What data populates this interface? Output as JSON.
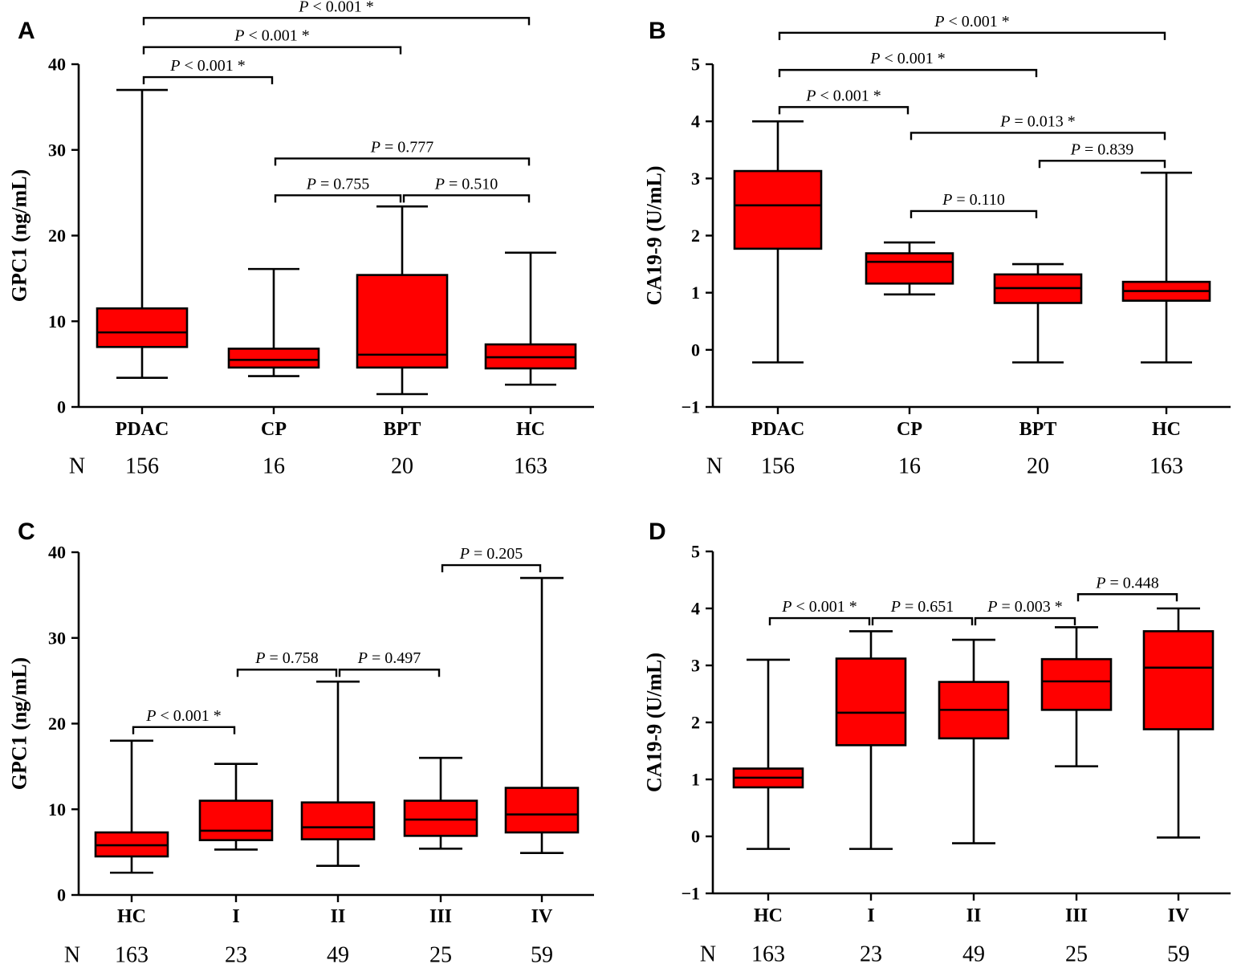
{
  "figure": {
    "box_color": "#ff0000",
    "line_color": "#000000"
  },
  "chart_data": [
    {
      "panel": "A",
      "type": "box",
      "ylabel": "GPC1 (ng/mL)",
      "ylim": [
        0,
        40
      ],
      "yticks": [
        0,
        10,
        20,
        30,
        40
      ],
      "n_label": "N",
      "categories": [
        "PDAC",
        "CP",
        "BPT",
        "HC"
      ],
      "n": [
        "156",
        "16",
        "20",
        "163"
      ],
      "boxes": [
        {
          "min": 3.4,
          "q1": 7.0,
          "median": 8.7,
          "q3": 11.5,
          "max": 37.0
        },
        {
          "min": 3.6,
          "q1": 4.6,
          "median": 5.5,
          "q3": 6.8,
          "max": 16.1
        },
        {
          "min": 1.5,
          "q1": 4.6,
          "median": 6.1,
          "q3": 15.4,
          "max": 23.4
        },
        {
          "min": 2.6,
          "q1": 4.5,
          "median": 5.8,
          "q3": 7.3,
          "max": 18.0
        }
      ],
      "comparisons": [
        {
          "from": 0,
          "to": 3,
          "y": 45.4,
          "label": "P < 0.001 *"
        },
        {
          "from": 0,
          "to": 2,
          "y": 42.0,
          "label": "P < 0.001 *"
        },
        {
          "from": 0,
          "to": 1,
          "y": 38.5,
          "label": "P < 0.001 *"
        },
        {
          "from": 1,
          "to": 3,
          "y": 29.0,
          "label": "P = 0.777"
        },
        {
          "from": 1,
          "to": 2,
          "y": 24.7,
          "label": "P = 0.755"
        },
        {
          "from": 2,
          "to": 3,
          "y": 24.7,
          "label": "P = 0.510"
        }
      ]
    },
    {
      "panel": "B",
      "type": "box",
      "ylabel": "CA19-9 (U/mL)",
      "ylim": [
        -1,
        5
      ],
      "yticks": [
        -1,
        0,
        1,
        2,
        3,
        4,
        5
      ],
      "n_label": "N",
      "categories": [
        "PDAC",
        "CP",
        "BPT",
        "HC"
      ],
      "n": [
        "156",
        "16",
        "20",
        "163"
      ],
      "boxes": [
        {
          "min": -0.22,
          "q1": 1.77,
          "median": 2.53,
          "q3": 3.13,
          "max": 4.0
        },
        {
          "min": 0.97,
          "q1": 1.16,
          "median": 1.54,
          "q3": 1.69,
          "max": 1.88
        },
        {
          "min": -0.22,
          "q1": 0.82,
          "median": 1.08,
          "q3": 1.32,
          "max": 1.5
        },
        {
          "min": -0.22,
          "q1": 0.86,
          "median": 1.03,
          "q3": 1.19,
          "max": 3.1
        }
      ],
      "comparisons": [
        {
          "from": 0,
          "to": 3,
          "y": 5.55,
          "label": "P < 0.001 *"
        },
        {
          "from": 0,
          "to": 2,
          "y": 4.9,
          "label": "P < 0.001 *"
        },
        {
          "from": 0,
          "to": 1,
          "y": 4.25,
          "label": "P < 0.001 *"
        },
        {
          "from": 1,
          "to": 3,
          "y": 3.8,
          "label": "P = 0.013 *"
        },
        {
          "from": 2,
          "to": 3,
          "y": 3.31,
          "label": "P = 0.839"
        },
        {
          "from": 1,
          "to": 2,
          "y": 2.43,
          "label": "P = 0.110"
        }
      ]
    },
    {
      "panel": "C",
      "type": "box",
      "ylabel": "GPC1 (ng/mL)",
      "ylim": [
        0,
        40
      ],
      "yticks": [
        0,
        10,
        20,
        30,
        40
      ],
      "n_label": "N",
      "categories": [
        "HC",
        "I",
        "II",
        "III",
        "IV"
      ],
      "n": [
        "163",
        "23",
        "49",
        "25",
        "59"
      ],
      "boxes": [
        {
          "min": 2.6,
          "q1": 4.5,
          "median": 5.8,
          "q3": 7.3,
          "max": 18.0
        },
        {
          "min": 5.3,
          "q1": 6.4,
          "median": 7.5,
          "q3": 11.0,
          "max": 15.3
        },
        {
          "min": 3.4,
          "q1": 6.5,
          "median": 7.9,
          "q3": 10.8,
          "max": 24.9
        },
        {
          "min": 5.4,
          "q1": 6.9,
          "median": 8.8,
          "q3": 11.0,
          "max": 16.0
        },
        {
          "min": 4.9,
          "q1": 7.3,
          "median": 9.4,
          "q3": 12.5,
          "max": 37.0
        }
      ],
      "comparisons": [
        {
          "from": 0,
          "to": 1,
          "y": 19.6,
          "label": "P < 0.001 *"
        },
        {
          "from": 1,
          "to": 2,
          "y": 26.3,
          "label": "P = 0.758"
        },
        {
          "from": 2,
          "to": 3,
          "y": 26.3,
          "label": "P = 0.497"
        },
        {
          "from": 3,
          "to": 4,
          "y": 38.5,
          "label": "P = 0.205"
        }
      ]
    },
    {
      "panel": "D",
      "type": "box",
      "ylabel": "CA19-9 (U/mL)",
      "ylim": [
        -1,
        5
      ],
      "yticks": [
        -1,
        0,
        1,
        2,
        3,
        4,
        5
      ],
      "n_label": "N",
      "categories": [
        "HC",
        "I",
        "II",
        "III",
        "IV"
      ],
      "n": [
        "163",
        "23",
        "49",
        "25",
        "59"
      ],
      "boxes": [
        {
          "min": -0.22,
          "q1": 0.86,
          "median": 1.03,
          "q3": 1.19,
          "max": 3.1
        },
        {
          "min": -0.22,
          "q1": 1.6,
          "median": 2.17,
          "q3": 3.12,
          "max": 3.6
        },
        {
          "min": -0.12,
          "q1": 1.72,
          "median": 2.22,
          "q3": 2.71,
          "max": 3.45
        },
        {
          "min": 1.23,
          "q1": 2.22,
          "median": 2.72,
          "q3": 3.11,
          "max": 3.67
        },
        {
          "min": -0.02,
          "q1": 1.88,
          "median": 2.96,
          "q3": 3.6,
          "max": 4.0
        }
      ],
      "comparisons": [
        {
          "from": 0,
          "to": 1,
          "y": 3.83,
          "label": "P < 0.001 *"
        },
        {
          "from": 1,
          "to": 2,
          "y": 3.83,
          "label": "P = 0.651"
        },
        {
          "from": 2,
          "to": 3,
          "y": 3.83,
          "label": "P = 0.003 *"
        },
        {
          "from": 3,
          "to": 4,
          "y": 4.25,
          "label": "P = 0.448"
        }
      ]
    }
  ]
}
